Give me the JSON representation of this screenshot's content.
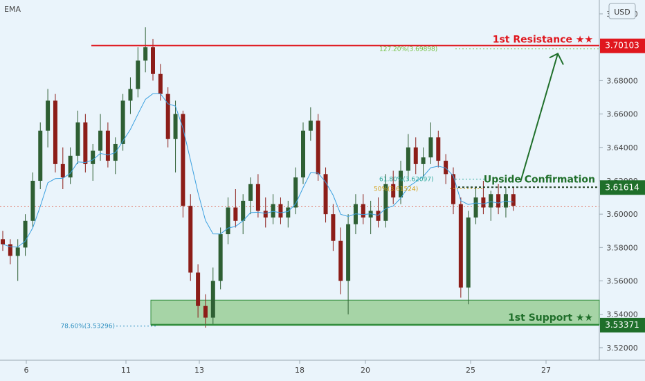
{
  "header": {
    "indicator_label": "EMA",
    "currency_label": "USD"
  },
  "colors": {
    "background": "#eaf4fb",
    "candle_up": "#2e5f33",
    "candle_down": "#8c1d18",
    "ema": "#3aa0e0",
    "resistance": "#e0171e",
    "support": "#2e8b3a",
    "support_zone": "#8fc98a",
    "confirmation": "#1f6f2a",
    "fib_127": "#6fbf3a",
    "fib_618": "#29a89a",
    "fib_50": "#d4a017",
    "fib_786": "#2d8fc0",
    "current_price": "#e07a6a"
  },
  "chart_data": {
    "type": "candlestick",
    "x_ticks": [
      "6",
      "11",
      "13",
      "18",
      "20",
      "25",
      "27"
    ],
    "y_ticks": [
      "3.72000",
      "3.70000",
      "3.68000",
      "3.66000",
      "3.64000",
      "3.62000",
      "3.60000",
      "3.58000",
      "3.56000",
      "3.54000",
      "3.52000"
    ],
    "ylim": [
      3.5125,
      3.7283
    ],
    "levels": {
      "resistance": {
        "label": "1st Resistance ★★",
        "price": 3.70103,
        "badge": "3.70103"
      },
      "confirmation": {
        "label": "Upside Confirmation",
        "price": 3.61614,
        "badge": "3.61614"
      },
      "support": {
        "label": "1st Support ★★",
        "price": 3.53371,
        "badge": "3.53371"
      }
    },
    "support_zone": [
      3.5337,
      3.5485
    ],
    "current_price": 3.6045,
    "fib_levels": [
      {
        "label": "127.20%(3.69898)",
        "price": 3.69898
      },
      {
        "label": "61.80%(3.62097)",
        "price": 3.62097
      },
      {
        "label": "50%(3.61524)",
        "price": 3.61524
      },
      {
        "label": "78.60%(3.53296)",
        "price": 3.53296
      }
    ],
    "projection": {
      "from": 3.6192,
      "to": 3.6962
    },
    "candles": [
      [
        0,
        3.585,
        3.59,
        3.578,
        3.582
      ],
      [
        1,
        3.582,
        3.585,
        3.57,
        3.575
      ],
      [
        2,
        3.575,
        3.585,
        3.56,
        3.58
      ],
      [
        3,
        3.58,
        3.6,
        3.575,
        3.596
      ],
      [
        4,
        3.596,
        3.625,
        3.592,
        3.62
      ],
      [
        5,
        3.62,
        3.655,
        3.615,
        3.65
      ],
      [
        6,
        3.65,
        3.675,
        3.64,
        3.668
      ],
      [
        7,
        3.668,
        3.672,
        3.625,
        3.63
      ],
      [
        8,
        3.63,
        3.64,
        3.615,
        3.622
      ],
      [
        9,
        3.622,
        3.64,
        3.618,
        3.635
      ],
      [
        10,
        3.635,
        3.662,
        3.63,
        3.655
      ],
      [
        11,
        3.655,
        3.66,
        3.625,
        3.63
      ],
      [
        12,
        3.63,
        3.642,
        3.62,
        3.638
      ],
      [
        13,
        3.638,
        3.66,
        3.632,
        3.65
      ],
      [
        14,
        3.65,
        3.655,
        3.628,
        3.632
      ],
      [
        15,
        3.632,
        3.646,
        3.624,
        3.642
      ],
      [
        16,
        3.642,
        3.672,
        3.638,
        3.668
      ],
      [
        17,
        3.668,
        3.682,
        3.66,
        3.675
      ],
      [
        18,
        3.675,
        3.7,
        3.67,
        3.692
      ],
      [
        19,
        3.692,
        3.712,
        3.685,
        3.7
      ],
      [
        20,
        3.7,
        3.705,
        3.68,
        3.684
      ],
      [
        21,
        3.684,
        3.69,
        3.668,
        3.672
      ],
      [
        22,
        3.672,
        3.676,
        3.64,
        3.645
      ],
      [
        23,
        3.645,
        3.668,
        3.625,
        3.66
      ],
      [
        24,
        3.66,
        3.662,
        3.598,
        3.605
      ],
      [
        25,
        3.605,
        3.612,
        3.56,
        3.565
      ],
      [
        26,
        3.565,
        3.57,
        3.538,
        3.545
      ],
      [
        27,
        3.545,
        3.552,
        3.532,
        3.538
      ],
      [
        28,
        3.538,
        3.568,
        3.534,
        3.56
      ],
      [
        29,
        3.56,
        3.592,
        3.555,
        3.588
      ],
      [
        30,
        3.588,
        3.61,
        3.582,
        3.604
      ],
      [
        31,
        3.604,
        3.615,
        3.592,
        3.596
      ],
      [
        32,
        3.596,
        3.612,
        3.588,
        3.608
      ],
      [
        33,
        3.608,
        3.622,
        3.6,
        3.618
      ],
      [
        34,
        3.618,
        3.624,
        3.598,
        3.602
      ],
      [
        35,
        3.602,
        3.61,
        3.592,
        3.598
      ],
      [
        36,
        3.598,
        3.612,
        3.594,
        3.606
      ],
      [
        37,
        3.606,
        3.61,
        3.594,
        3.598
      ],
      [
        38,
        3.598,
        3.608,
        3.592,
        3.604
      ],
      [
        39,
        3.604,
        3.628,
        3.6,
        3.622
      ],
      [
        40,
        3.622,
        3.655,
        3.618,
        3.65
      ],
      [
        41,
        3.65,
        3.664,
        3.644,
        3.656
      ],
      [
        42,
        3.656,
        3.66,
        3.62,
        3.624
      ],
      [
        43,
        3.624,
        3.628,
        3.595,
        3.6
      ],
      [
        44,
        3.6,
        3.606,
        3.578,
        3.584
      ],
      [
        45,
        3.584,
        3.592,
        3.552,
        3.56
      ],
      [
        46,
        3.56,
        3.6,
        3.54,
        3.594
      ],
      [
        47,
        3.594,
        3.612,
        3.588,
        3.606
      ],
      [
        48,
        3.606,
        3.612,
        3.594,
        3.598
      ],
      [
        49,
        3.598,
        3.608,
        3.588,
        3.602
      ],
      [
        50,
        3.602,
        3.61,
        3.592,
        3.596
      ],
      [
        51,
        3.596,
        3.624,
        3.592,
        3.618
      ],
      [
        52,
        3.618,
        3.626,
        3.606,
        3.61
      ],
      [
        53,
        3.61,
        3.632,
        3.606,
        3.626
      ],
      [
        54,
        3.626,
        3.648,
        3.62,
        3.64
      ],
      [
        55,
        3.64,
        3.646,
        3.624,
        3.63
      ],
      [
        56,
        3.63,
        3.64,
        3.622,
        3.634
      ],
      [
        57,
        3.634,
        3.655,
        3.63,
        3.646
      ],
      [
        58,
        3.646,
        3.65,
        3.628,
        3.632
      ],
      [
        59,
        3.632,
        3.636,
        3.618,
        3.624
      ],
      [
        60,
        3.624,
        3.628,
        3.6,
        3.606
      ],
      [
        61,
        3.606,
        3.61,
        3.55,
        3.556
      ],
      [
        62,
        3.556,
        3.602,
        3.546,
        3.598
      ],
      [
        63,
        3.598,
        3.616,
        3.594,
        3.61
      ],
      [
        64,
        3.61,
        3.62,
        3.6,
        3.604
      ],
      [
        65,
        3.604,
        3.614,
        3.596,
        3.612
      ],
      [
        66,
        3.612,
        3.618,
        3.6,
        3.604
      ],
      [
        67,
        3.604,
        3.616,
        3.598,
        3.612
      ],
      [
        68,
        3.612,
        3.616,
        3.602,
        3.605
      ]
    ]
  }
}
